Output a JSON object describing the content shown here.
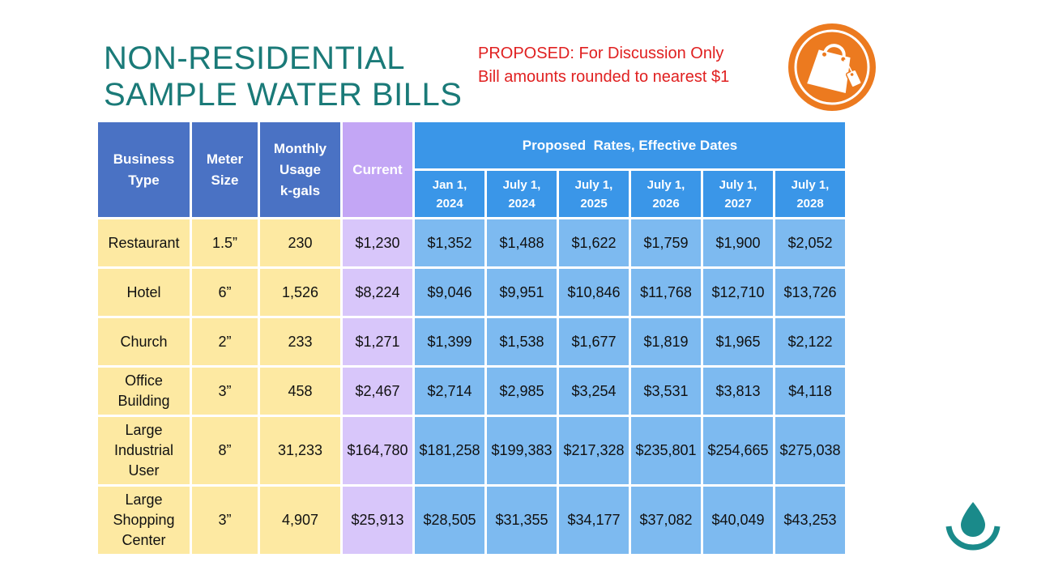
{
  "title": {
    "line1": "NON-RESIDENTIAL",
    "line2": "SAMPLE WATER BILLS"
  },
  "note": {
    "line1": "PROPOSED: For Discussion Only",
    "line2": "Bill amounts rounded to nearest $1"
  },
  "colors": {
    "title": "#1a7a78",
    "note": "#e02020",
    "header_blue": "#4a72c4",
    "proposed_blue": "#3a96e8",
    "cell_blue": "#7dbaf0",
    "current_purple": "#c3a6f5",
    "cell_purple": "#d8c6fa",
    "cell_yellow": "#fde9a2",
    "badge_orange": "#ec7a1f"
  },
  "icons": {
    "badge": "shopping-bag-icon",
    "logo": "water-drop-icon"
  },
  "table": {
    "headers": {
      "business_type": [
        "Business",
        "Type"
      ],
      "meter_size": [
        "Meter",
        "Size"
      ],
      "monthly_usage": [
        "Monthly",
        "Usage",
        "k-gals"
      ],
      "current": "Current",
      "proposed": "Proposed  Rates, Effective Dates",
      "dates": [
        [
          "Jan 1,",
          "2024"
        ],
        [
          "July 1,",
          "2024"
        ],
        [
          "July 1,",
          "2025"
        ],
        [
          "July 1,",
          "2026"
        ],
        [
          "July 1,",
          "2027"
        ],
        [
          "July 1,",
          "2028"
        ]
      ]
    },
    "rows": [
      {
        "type": [
          "Restaurant"
        ],
        "meter": "1.5”",
        "usage": "230",
        "current": "$1,230",
        "proposed": [
          "$1,352",
          "$1,488",
          "$1,622",
          "$1,759",
          "$1,900",
          "$2,052"
        ]
      },
      {
        "type": [
          "Hotel"
        ],
        "meter": "6”",
        "usage": "1,526",
        "current": "$8,224",
        "proposed": [
          "$9,046",
          "$9,951",
          "$10,846",
          "$11,768",
          "$12,710",
          "$13,726"
        ]
      },
      {
        "type": [
          "Church"
        ],
        "meter": "2”",
        "usage": "233",
        "current": "$1,271",
        "proposed": [
          "$1,399",
          "$1,538",
          "$1,677",
          "$1,819",
          "$1,965",
          "$2,122"
        ]
      },
      {
        "type": [
          "Office",
          "Building"
        ],
        "meter": "3”",
        "usage": "458",
        "current": "$2,467",
        "proposed": [
          "$2,714",
          "$2,985",
          "$3,254",
          "$3,531",
          "$3,813",
          "$4,118"
        ]
      },
      {
        "type": [
          "Large",
          "Industrial",
          "User"
        ],
        "meter": "8”",
        "usage": "31,233",
        "current": "$164,780",
        "proposed": [
          "$181,258",
          "$199,383",
          "$217,328",
          "$235,801",
          "$254,665",
          "$275,038"
        ]
      },
      {
        "type": [
          "Large",
          "Shopping",
          "Center"
        ],
        "meter": "3”",
        "usage": "4,907",
        "current": "$25,913",
        "proposed": [
          "$28,505",
          "$31,355",
          "$34,177",
          "$37,082",
          "$40,049",
          "$43,253"
        ]
      }
    ]
  }
}
